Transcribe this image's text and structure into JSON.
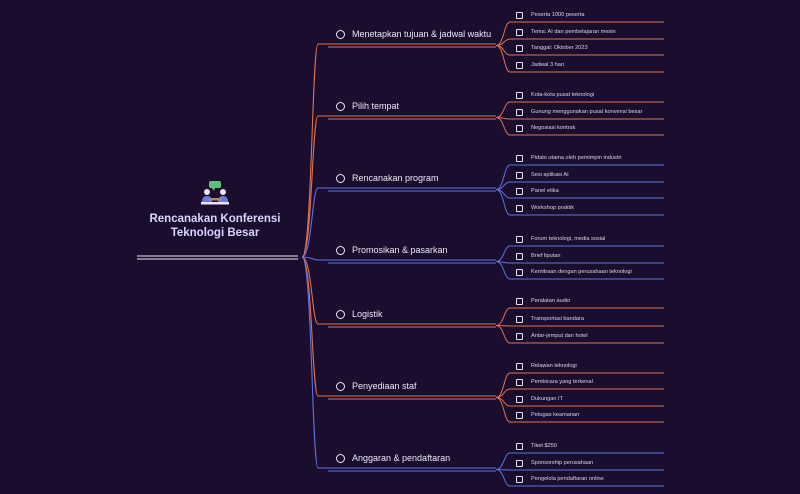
{
  "root": {
    "title_line1": "Rencanakan Konferensi",
    "title_line2": "Teknologi Besar",
    "icon": "meeting-icon"
  },
  "colors": {
    "background": "#1b0d2e",
    "orange": "#e0734e",
    "blue": "#5d72e6",
    "root_line": "#ece9f6"
  },
  "topics": [
    {
      "label": "Menetapkan tujuan & jadwal waktu",
      "color": "orange",
      "items": [
        "Peserta 1000 peserta",
        "Tema: AI dan pembelajaran mesin",
        "Tanggal: Oktober 2023",
        "Jadwal 3 hari"
      ]
    },
    {
      "label": "Pilih tempat",
      "color": "orange",
      "items": [
        "Kota-kota pusat teknologi",
        "Gunung menggunakan pusat konvensi besar",
        "Negosiasi kontrak"
      ]
    },
    {
      "label": "Rencanakan program",
      "color": "blue",
      "items": [
        "Pidato utama oleh pemimpin industri",
        "Sesi aplikasi AI",
        "Panel etika",
        "Workshop praktik"
      ]
    },
    {
      "label": "Promosikan & pasarkan",
      "color": "blue",
      "items": [
        "Forum teknologi, media sosial",
        "Brief liputan",
        "Kemitraan dengan perusahaan teknologi"
      ]
    },
    {
      "label": "Logistik",
      "color": "orange",
      "items": [
        "Peralatan audio",
        "Transportasi bandara",
        "Antar-jemput dan hotel"
      ]
    },
    {
      "label": "Penyediaan staf",
      "color": "orange",
      "items": [
        "Relawan teknologi",
        "Pembicara yang terkenal",
        "Dukungan IT",
        "Petugas keamanan"
      ]
    },
    {
      "label": "Anggaran & pendaftaran",
      "color": "blue",
      "items": [
        "Tiket $250",
        "Sponsorship perusahaan",
        "Pengelola pendaftaran online"
      ]
    }
  ]
}
